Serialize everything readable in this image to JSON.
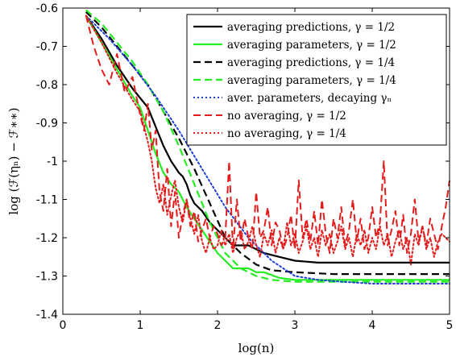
{
  "chart_data": {
    "type": "line",
    "title": "",
    "xlabel": "log(n)",
    "ylabel": "log (ℱ(ηₙ) − ℱ∗∗)",
    "xlim": [
      0,
      5
    ],
    "ylim": [
      -1.4,
      -0.6
    ],
    "xticks": [
      0,
      1,
      2,
      3,
      4,
      5
    ],
    "xtick_labels": [
      "0",
      "1",
      "2",
      "3",
      "4",
      "5"
    ],
    "yticks": [
      -1.4,
      -1.3,
      -1.2,
      -1.1,
      -1.0,
      -0.9,
      -0.8,
      -0.7,
      -0.6
    ],
    "ytick_labels": [
      "-1.4",
      "-1.3",
      "-1.2",
      "-1.1",
      "-1",
      "-0.9",
      "-0.8",
      "-0.7",
      "-0.6"
    ],
    "grid": false,
    "legend_position": "top-right",
    "series": [
      {
        "name": "averaging predictions, γ = 1/2",
        "color": "#000000",
        "dash": "solid",
        "width": 2.2,
        "x": [
          0.3,
          0.5,
          0.7,
          0.9,
          1.1,
          1.3,
          1.4,
          1.5,
          1.55,
          1.6,
          1.65,
          1.7,
          1.8,
          1.9,
          2.0,
          2.1,
          2.2,
          2.4,
          2.6,
          2.8,
          3.0,
          3.3,
          3.6,
          4.0,
          4.5,
          5.0
        ],
        "y": [
          -0.62,
          -0.68,
          -0.75,
          -0.81,
          -0.86,
          -0.96,
          -1.0,
          -1.03,
          -1.04,
          -1.06,
          -1.09,
          -1.11,
          -1.13,
          -1.16,
          -1.18,
          -1.2,
          -1.22,
          -1.22,
          -1.24,
          -1.25,
          -1.26,
          -1.265,
          -1.265,
          -1.265,
          -1.265,
          -1.265
        ]
      },
      {
        "name": "averaging parameters, γ = 1/2",
        "color": "#22ee22",
        "dash": "solid",
        "width": 2.2,
        "x": [
          0.3,
          0.5,
          0.7,
          0.9,
          1.0,
          1.1,
          1.2,
          1.3,
          1.4,
          1.5,
          1.6,
          1.7,
          1.8,
          1.9,
          2.0,
          2.2,
          2.4,
          2.5,
          2.6,
          2.8,
          3.0,
          3.5,
          4.0,
          5.0
        ],
        "y": [
          -0.62,
          -0.69,
          -0.76,
          -0.83,
          -0.86,
          -0.92,
          -0.98,
          -1.03,
          -1.06,
          -1.08,
          -1.12,
          -1.15,
          -1.18,
          -1.21,
          -1.24,
          -1.28,
          -1.28,
          -1.29,
          -1.29,
          -1.305,
          -1.31,
          -1.31,
          -1.31,
          -1.31
        ]
      },
      {
        "name": "averaging predictions, γ = 1/4",
        "color": "#000000",
        "dash": "dashed",
        "width": 2.2,
        "x": [
          0.3,
          0.5,
          0.7,
          0.9,
          1.1,
          1.3,
          1.5,
          1.7,
          1.9,
          2.1,
          2.3,
          2.5,
          2.7,
          3.0,
          3.5,
          4.0,
          5.0
        ],
        "y": [
          -0.61,
          -0.65,
          -0.7,
          -0.75,
          -0.8,
          -0.87,
          -0.94,
          -1.02,
          -1.11,
          -1.2,
          -1.24,
          -1.27,
          -1.285,
          -1.29,
          -1.295,
          -1.295,
          -1.295
        ]
      },
      {
        "name": "averaging parameters, γ = 1/4",
        "color": "#22ee22",
        "dash": "dashed",
        "width": 2.2,
        "x": [
          0.3,
          0.5,
          0.7,
          0.9,
          1.1,
          1.3,
          1.5,
          1.7,
          1.9,
          2.0,
          2.1,
          2.3,
          2.5,
          2.7,
          3.0,
          3.5,
          4.0,
          5.0
        ],
        "y": [
          -0.605,
          -0.64,
          -0.69,
          -0.74,
          -0.8,
          -0.87,
          -0.96,
          -1.06,
          -1.16,
          -1.2,
          -1.24,
          -1.28,
          -1.3,
          -1.31,
          -1.315,
          -1.315,
          -1.315,
          -1.315
        ]
      },
      {
        "name": "aver. parameters, decaying γₙ",
        "color": "#1f3fdd",
        "dash": "dotted",
        "width": 2.0,
        "x": [
          0.3,
          0.6,
          0.9,
          1.2,
          1.5,
          1.8,
          2.1,
          2.4,
          2.7,
          3.0,
          3.3,
          3.6,
          4.0,
          4.5,
          5.0
        ],
        "y": [
          -0.62,
          -0.68,
          -0.75,
          -0.83,
          -0.92,
          -1.02,
          -1.12,
          -1.2,
          -1.26,
          -1.3,
          -1.31,
          -1.315,
          -1.32,
          -1.32,
          -1.32
        ]
      },
      {
        "name": "no averaging, γ = 1/2",
        "color": "#e51c1c",
        "dash": "dashed",
        "width": 2.0,
        "x": [
          0.3,
          0.4,
          0.5,
          0.6,
          0.7,
          0.8,
          0.9,
          1.0,
          1.05,
          1.1,
          1.15,
          1.2,
          1.25,
          1.3,
          1.35,
          1.4,
          1.45,
          1.5,
          1.55,
          1.6,
          1.65,
          1.7,
          1.75,
          1.8,
          1.85,
          1.9,
          1.95,
          2.0,
          2.05,
          2.1,
          2.15,
          2.2,
          2.25,
          2.3,
          2.35,
          2.4,
          2.45,
          2.5,
          2.55,
          2.6,
          2.65,
          2.7,
          2.75,
          2.8,
          2.85,
          2.9,
          2.95,
          3.0,
          3.05,
          3.1,
          3.15,
          3.2,
          3.25,
          3.3,
          3.35,
          3.4,
          3.45,
          3.5,
          3.55,
          3.6,
          3.65,
          3.7,
          3.75,
          3.8,
          3.85,
          3.9,
          3.95,
          4.0,
          4.05,
          4.1,
          4.15,
          4.2,
          4.25,
          4.3,
          4.35,
          4.4,
          4.45,
          4.5,
          4.55,
          4.6,
          4.65,
          4.7,
          4.75,
          4.8,
          4.85,
          4.9,
          4.95,
          5.0
        ],
        "y": [
          -0.62,
          -0.7,
          -0.76,
          -0.8,
          -0.72,
          -0.82,
          -0.78,
          -0.88,
          -0.92,
          -0.85,
          -0.97,
          -0.92,
          -1.08,
          -1.13,
          -1.02,
          -1.17,
          -1.08,
          -1.2,
          -1.14,
          -1.1,
          -1.17,
          -1.13,
          -1.21,
          -1.18,
          -1.15,
          -1.2,
          -1.17,
          -1.19,
          -1.22,
          -1.2,
          -1.0,
          -1.23,
          -1.1,
          -1.21,
          -1.15,
          -1.2,
          -1.23,
          -1.08,
          -1.2,
          -1.18,
          -1.12,
          -1.22,
          -1.16,
          -1.18,
          -1.23,
          -1.2,
          -1.14,
          -1.23,
          -1.05,
          -1.2,
          -1.15,
          -1.21,
          -1.13,
          -1.22,
          -1.1,
          -1.19,
          -1.24,
          -1.15,
          -1.2,
          -1.12,
          -1.22,
          -1.18,
          -1.1,
          -1.21,
          -1.15,
          -1.23,
          -1.2,
          -1.12,
          -1.2,
          -1.16,
          -1.0,
          -1.22,
          -1.18,
          -1.13,
          -1.22,
          -1.14,
          -1.24,
          -1.19,
          -1.1,
          -1.21,
          -1.17,
          -1.22,
          -1.15,
          -1.19,
          -1.23,
          -1.17,
          -1.12,
          -1.05
        ]
      },
      {
        "name": "no averaging, γ = 1/4",
        "color": "#e51c1c",
        "dash": "dotted",
        "width": 2.0,
        "x": [
          0.3,
          0.5,
          0.7,
          0.9,
          1.0,
          1.1,
          1.15,
          1.2,
          1.25,
          1.3,
          1.35,
          1.4,
          1.45,
          1.5,
          1.55,
          1.6,
          1.65,
          1.7,
          1.75,
          1.8,
          1.85,
          1.9,
          1.95,
          2.0,
          2.05,
          2.1,
          2.15,
          2.2,
          2.25,
          2.3,
          2.35,
          2.4,
          2.45,
          2.5,
          2.55,
          2.6,
          2.65,
          2.7,
          2.75,
          2.8,
          2.85,
          2.9,
          2.95,
          3.0,
          3.05,
          3.1,
          3.15,
          3.2,
          3.25,
          3.3,
          3.35,
          3.4,
          3.45,
          3.5,
          3.55,
          3.6,
          3.65,
          3.7,
          3.75,
          3.8,
          3.85,
          3.9,
          3.95,
          4.0,
          4.05,
          4.1,
          4.15,
          4.2,
          4.25,
          4.3,
          4.35,
          4.4,
          4.45,
          4.5,
          4.55,
          4.6,
          4.65,
          4.7,
          4.75,
          4.8,
          4.85,
          4.9,
          4.95,
          5.0
        ],
        "y": [
          -0.62,
          -0.69,
          -0.77,
          -0.84,
          -0.87,
          -0.95,
          -1.0,
          -1.07,
          -1.11,
          -1.06,
          -1.14,
          -1.09,
          -1.05,
          -1.12,
          -1.16,
          -1.1,
          -1.15,
          -1.19,
          -1.14,
          -1.21,
          -1.24,
          -1.2,
          -1.23,
          -1.22,
          -1.18,
          -1.22,
          -1.19,
          -1.24,
          -1.2,
          -1.18,
          -1.23,
          -1.21,
          -1.17,
          -1.22,
          -1.25,
          -1.19,
          -1.22,
          -1.18,
          -1.24,
          -1.2,
          -1.23,
          -1.16,
          -1.22,
          -1.19,
          -1.24,
          -1.21,
          -1.17,
          -1.23,
          -1.2,
          -1.25,
          -1.18,
          -1.22,
          -1.19,
          -1.24,
          -1.21,
          -1.17,
          -1.23,
          -1.2,
          -1.25,
          -1.19,
          -1.22,
          -1.18,
          -1.24,
          -1.2,
          -1.23,
          -1.17,
          -1.22,
          -1.19,
          -1.25,
          -1.21,
          -1.18,
          -1.23,
          -1.2,
          -1.27,
          -1.19,
          -1.22,
          -1.17,
          -1.23,
          -1.2,
          -1.25,
          -1.21,
          -1.19,
          -1.2,
          -1.21
        ]
      }
    ]
  }
}
